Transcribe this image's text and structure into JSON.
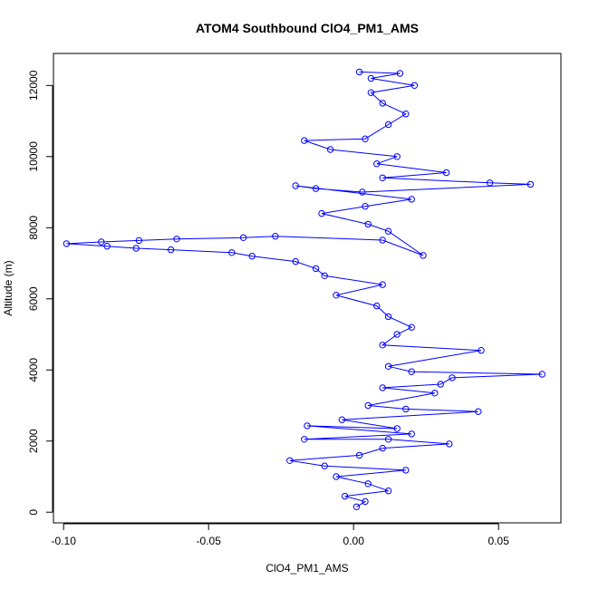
{
  "chart_data": {
    "type": "line",
    "title": "ATOM4 Southbound ClO4_PM1_AMS",
    "xlabel": "ClO4_PM1_AMS",
    "ylabel": "Altitude (m)",
    "xlim": [
      -0.1035,
      0.0715
    ],
    "ylim": [
      -300,
      12900
    ],
    "xticks": [
      -0.1,
      -0.05,
      0.0,
      0.05
    ],
    "xtick_labels": [
      "-0.10",
      "-0.05",
      "0.00",
      "0.05"
    ],
    "yticks": [
      0,
      2000,
      4000,
      6000,
      8000,
      10000,
      12000
    ],
    "ytick_labels": [
      "0",
      "2000",
      "4000",
      "6000",
      "8000",
      "10000",
      "12000"
    ],
    "series_color": "#0000ff",
    "marker": "open-circle",
    "series": [
      {
        "name": "ClO4_PM1_AMS",
        "points": [
          [
            0.001,
            150
          ],
          [
            0.004,
            300
          ],
          [
            -0.003,
            450
          ],
          [
            0.012,
            600
          ],
          [
            0.005,
            800
          ],
          [
            -0.006,
            1000
          ],
          [
            0.018,
            1180
          ],
          [
            -0.01,
            1300
          ],
          [
            -0.022,
            1450
          ],
          [
            0.002,
            1600
          ],
          [
            0.01,
            1800
          ],
          [
            0.033,
            1920
          ],
          [
            0.012,
            2050
          ],
          [
            -0.017,
            2050
          ],
          [
            0.02,
            2200
          ],
          [
            -0.016,
            2430
          ],
          [
            0.015,
            2350
          ],
          [
            -0.004,
            2600
          ],
          [
            0.043,
            2830
          ],
          [
            0.018,
            2900
          ],
          [
            0.005,
            3000
          ],
          [
            0.028,
            3350
          ],
          [
            0.01,
            3500
          ],
          [
            0.03,
            3600
          ],
          [
            0.034,
            3780
          ],
          [
            0.065,
            3880
          ],
          [
            0.02,
            3950
          ],
          [
            0.012,
            4100
          ],
          [
            0.044,
            4550
          ],
          [
            0.01,
            4700
          ],
          [
            0.015,
            5000
          ],
          [
            0.02,
            5200
          ],
          [
            0.012,
            5500
          ],
          [
            0.008,
            5800
          ],
          [
            -0.006,
            6100
          ],
          [
            0.01,
            6400
          ],
          [
            -0.01,
            6650
          ],
          [
            -0.013,
            6850
          ],
          [
            -0.02,
            7050
          ],
          [
            -0.035,
            7200
          ],
          [
            -0.042,
            7300
          ],
          [
            -0.063,
            7380
          ],
          [
            -0.075,
            7420
          ],
          [
            -0.085,
            7480
          ],
          [
            -0.099,
            7550
          ],
          [
            -0.087,
            7600
          ],
          [
            -0.074,
            7640
          ],
          [
            -0.061,
            7680
          ],
          [
            -0.038,
            7720
          ],
          [
            -0.027,
            7760
          ],
          [
            0.01,
            7650
          ],
          [
            0.024,
            7220
          ],
          [
            0.012,
            7900
          ],
          [
            0.005,
            8100
          ],
          [
            -0.011,
            8400
          ],
          [
            0.004,
            8600
          ],
          [
            0.02,
            8800
          ],
          [
            -0.02,
            9180
          ],
          [
            -0.013,
            9100
          ],
          [
            0.003,
            9000
          ],
          [
            0.061,
            9220
          ],
          [
            0.047,
            9260
          ],
          [
            0.01,
            9400
          ],
          [
            0.032,
            9550
          ],
          [
            0.008,
            9800
          ],
          [
            0.015,
            10000
          ],
          [
            -0.008,
            10200
          ],
          [
            -0.017,
            10450
          ],
          [
            0.004,
            10500
          ],
          [
            0.012,
            10900
          ],
          [
            0.018,
            11200
          ],
          [
            0.01,
            11500
          ],
          [
            0.006,
            11800
          ],
          [
            0.021,
            12000
          ],
          [
            0.006,
            12200
          ],
          [
            0.016,
            12340
          ],
          [
            0.002,
            12380
          ]
        ]
      }
    ]
  }
}
